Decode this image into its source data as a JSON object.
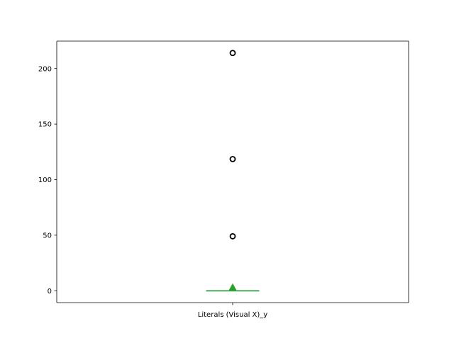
{
  "chart_data": {
    "type": "box",
    "title": "",
    "xlabel": "",
    "ylabel": "",
    "categories": [
      "Literals (Visual X)_y"
    ],
    "ylim": [
      -10.7,
      224.7
    ],
    "yticks": [
      0,
      50,
      100,
      150,
      200
    ],
    "ytick_labels": [
      "0",
      "50",
      "100",
      "150",
      "200"
    ],
    "grid": false,
    "boxes": [
      {
        "label": "Literals (Visual X)_y",
        "whislo": 0,
        "q1": 0,
        "median": 0,
        "q3": 0,
        "whishi": 0,
        "mean": 3.2,
        "fliers": [
          49,
          118.5,
          214
        ]
      }
    ],
    "colors": {
      "box": "#1f77b4",
      "median": "#2ca02c",
      "mean_marker": "#2ca02c",
      "flier_edge": "#000000",
      "axes": "#000000"
    }
  }
}
